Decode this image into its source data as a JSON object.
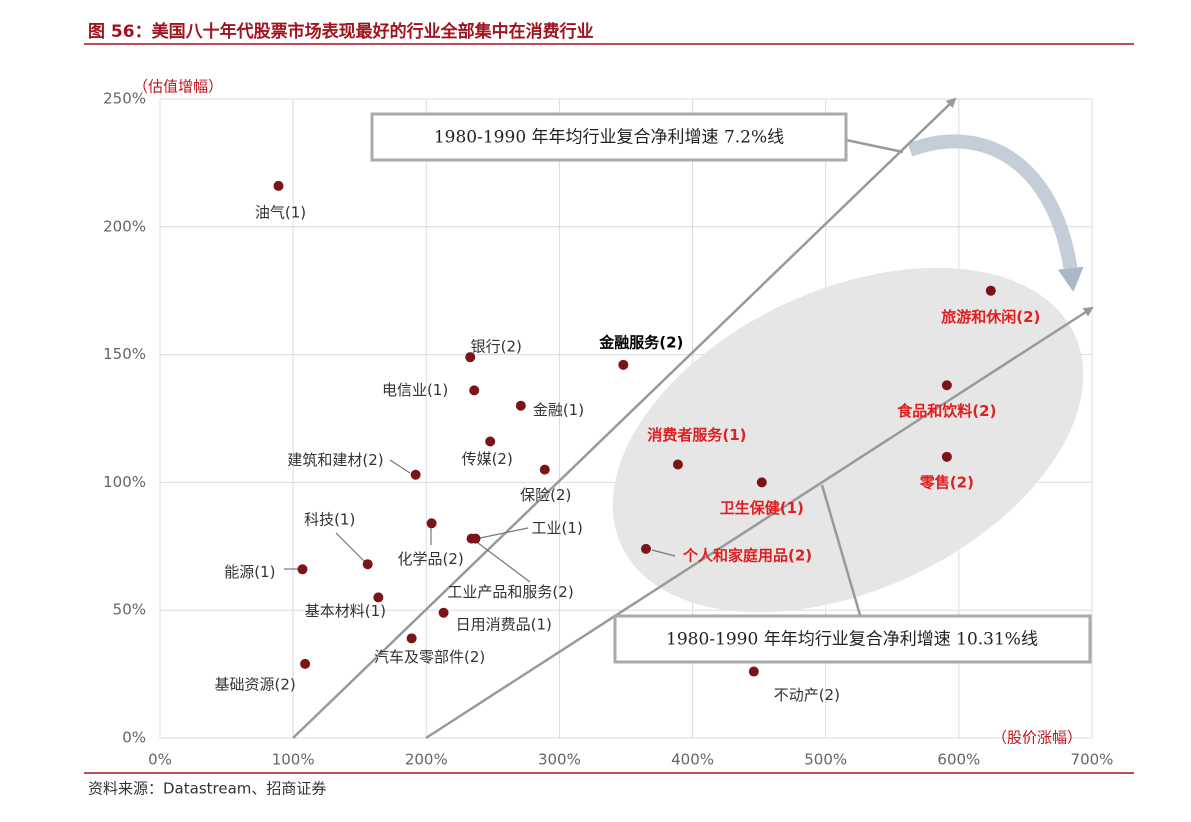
{
  "chart_data": {
    "type": "scatter",
    "title": "图 56：美国八十年代股票市场表现最好的行业全部集中在消费行业",
    "y_label": "（估值增幅）",
    "x_label": "（股价涨幅）",
    "source": "资料来源：Datastream、招商证券",
    "annotations": [
      "1980-1990 年年均行业复合净利增速 7.2%线",
      "1980-1990 年年均行业复合净利增速 10.31%线"
    ],
    "xlim": [
      0,
      700
    ],
    "ylim": [
      0,
      250
    ],
    "xticks": [
      {
        "value": 0,
        "label": "0%"
      },
      {
        "value": 100,
        "label": "100%"
      },
      {
        "value": 200,
        "label": "200%"
      },
      {
        "value": 300,
        "label": "300%"
      },
      {
        "value": 400,
        "label": "400%"
      },
      {
        "value": 500,
        "label": "500%"
      },
      {
        "value": 600,
        "label": "600%"
      },
      {
        "value": 700,
        "label": "700%"
      }
    ],
    "yticks": [
      {
        "value": 0,
        "label": "0%"
      },
      {
        "value": 50,
        "label": "50%"
      },
      {
        "value": 100,
        "label": "100%"
      },
      {
        "value": 150,
        "label": "150%"
      },
      {
        "value": 200,
        "label": "200%"
      },
      {
        "value": 250,
        "label": "250%"
      }
    ],
    "grid": true,
    "series": [
      {
        "color": "#7b1416",
        "label_color": "#333333",
        "labels": [
          "油气(1)",
          "银行(2)",
          "电信业(1)",
          "金融(1)",
          "金融服务(2)",
          "传媒(2)",
          "保险(2)",
          "建筑和建材(2)",
          "科技(1)",
          "化学品(2)",
          "工业(1)",
          "工业产品和服务(2)",
          "能源(1)",
          "基本材料(1)",
          "日用消费品(1)",
          "汽车及零部件(2)",
          "基础资源(2)",
          "不动产(2)"
        ],
        "x": [
          89,
          233,
          236,
          271,
          348,
          248,
          289,
          192,
          156,
          204,
          237,
          234,
          107,
          164,
          213,
          189,
          109,
          446
        ],
        "values": [
          216,
          149,
          136,
          130,
          146,
          116,
          105,
          103,
          68,
          84,
          78,
          78,
          66,
          55,
          49,
          39,
          29,
          26
        ]
      },
      {
        "color": "#7b1416",
        "label_color": "#e02020",
        "labels": [
          "消费者服务(1)",
          "卫生保健(1)",
          "个人和家庭用品(2)",
          "旅游和休闲(2)",
          "食品和饮料(2)",
          "零售(2)"
        ],
        "x": [
          389,
          452,
          365,
          624,
          591,
          591
        ],
        "values": [
          107,
          100,
          74,
          175,
          138,
          110
        ]
      }
    ]
  }
}
